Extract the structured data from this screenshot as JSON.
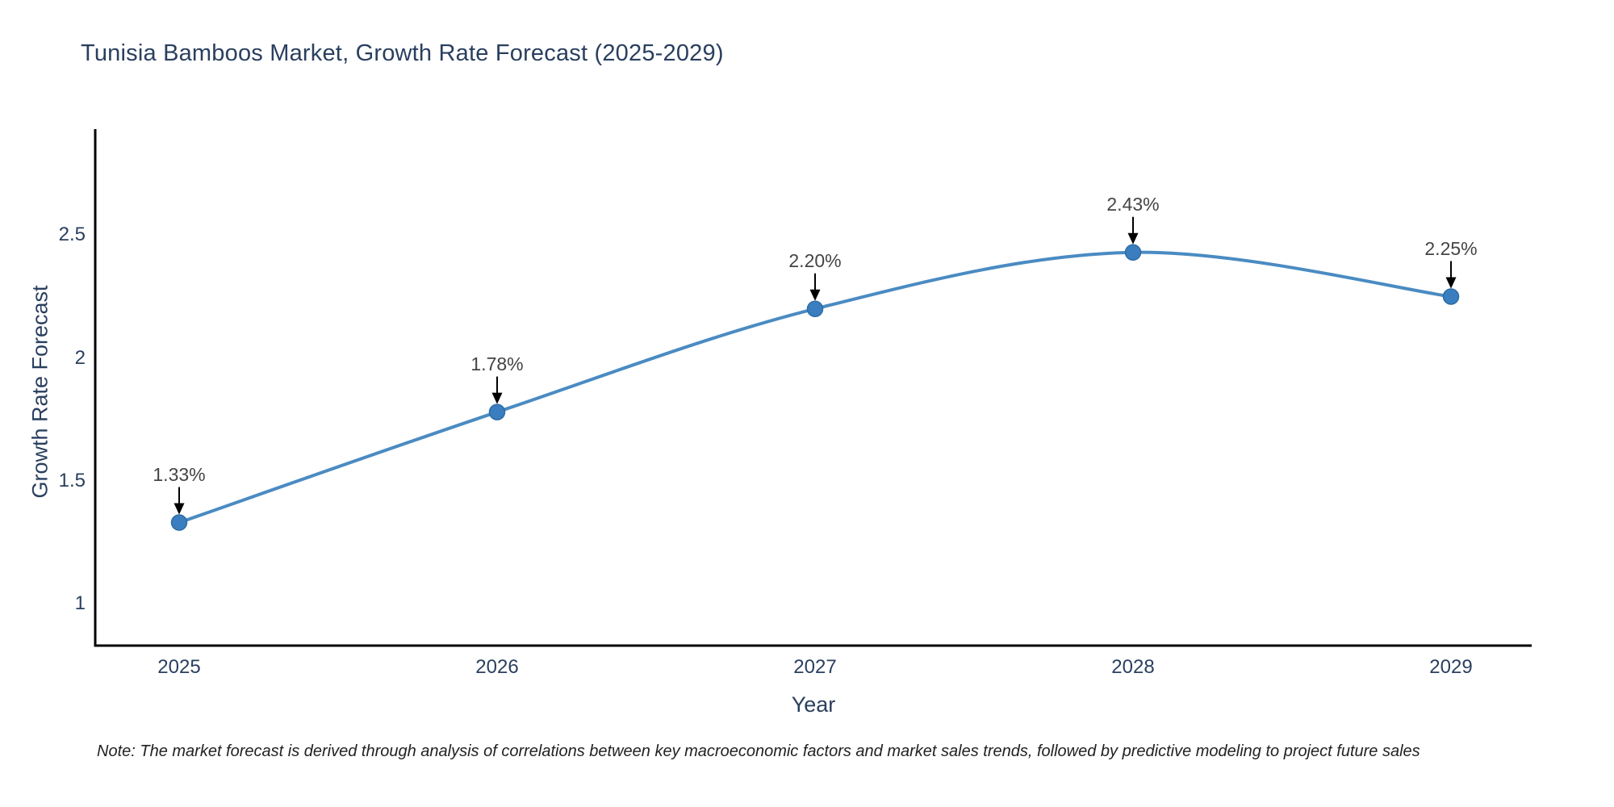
{
  "title": "Tunisia Bamboos Market, Growth Rate Forecast (2025-2029)",
  "note": "Note: The market forecast is derived through analysis of correlations between key macroeconomic factors and market sales trends, followed by predictive modeling to project future sales",
  "chart_data": {
    "type": "line",
    "title": "Tunisia Bamboos Market, Growth Rate Forecast (2025-2029)",
    "xlabel": "Year",
    "ylabel": "Growth Rate Forecast",
    "x": [
      2025,
      2026,
      2027,
      2028,
      2029
    ],
    "values": [
      1.33,
      1.78,
      2.2,
      2.43,
      2.25
    ],
    "point_labels": [
      "1.33%",
      "1.78%",
      "2.20%",
      "2.43%",
      "2.25%"
    ],
    "xtick_labels": [
      "2025",
      "2026",
      "2027",
      "2028",
      "2029"
    ],
    "yticks": [
      1,
      1.5,
      2,
      2.5
    ],
    "ytick_labels": [
      "1",
      "1.5",
      "2",
      "2.5"
    ],
    "xlim": [
      2024.74,
      2029.26
    ],
    "ylim": [
      0.83,
      2.95
    ],
    "line_shape": "spline",
    "grid": false,
    "legend": "none",
    "colors": {
      "line": "#4a8bc2",
      "marker": "#3a7ebf",
      "marker_edge": "#2e6ca5",
      "axis": "#000000",
      "axis_text": "#2a3f5f",
      "annotation_text": "#444444",
      "annotation_arrow": "#000000",
      "background": "#ffffff"
    }
  }
}
